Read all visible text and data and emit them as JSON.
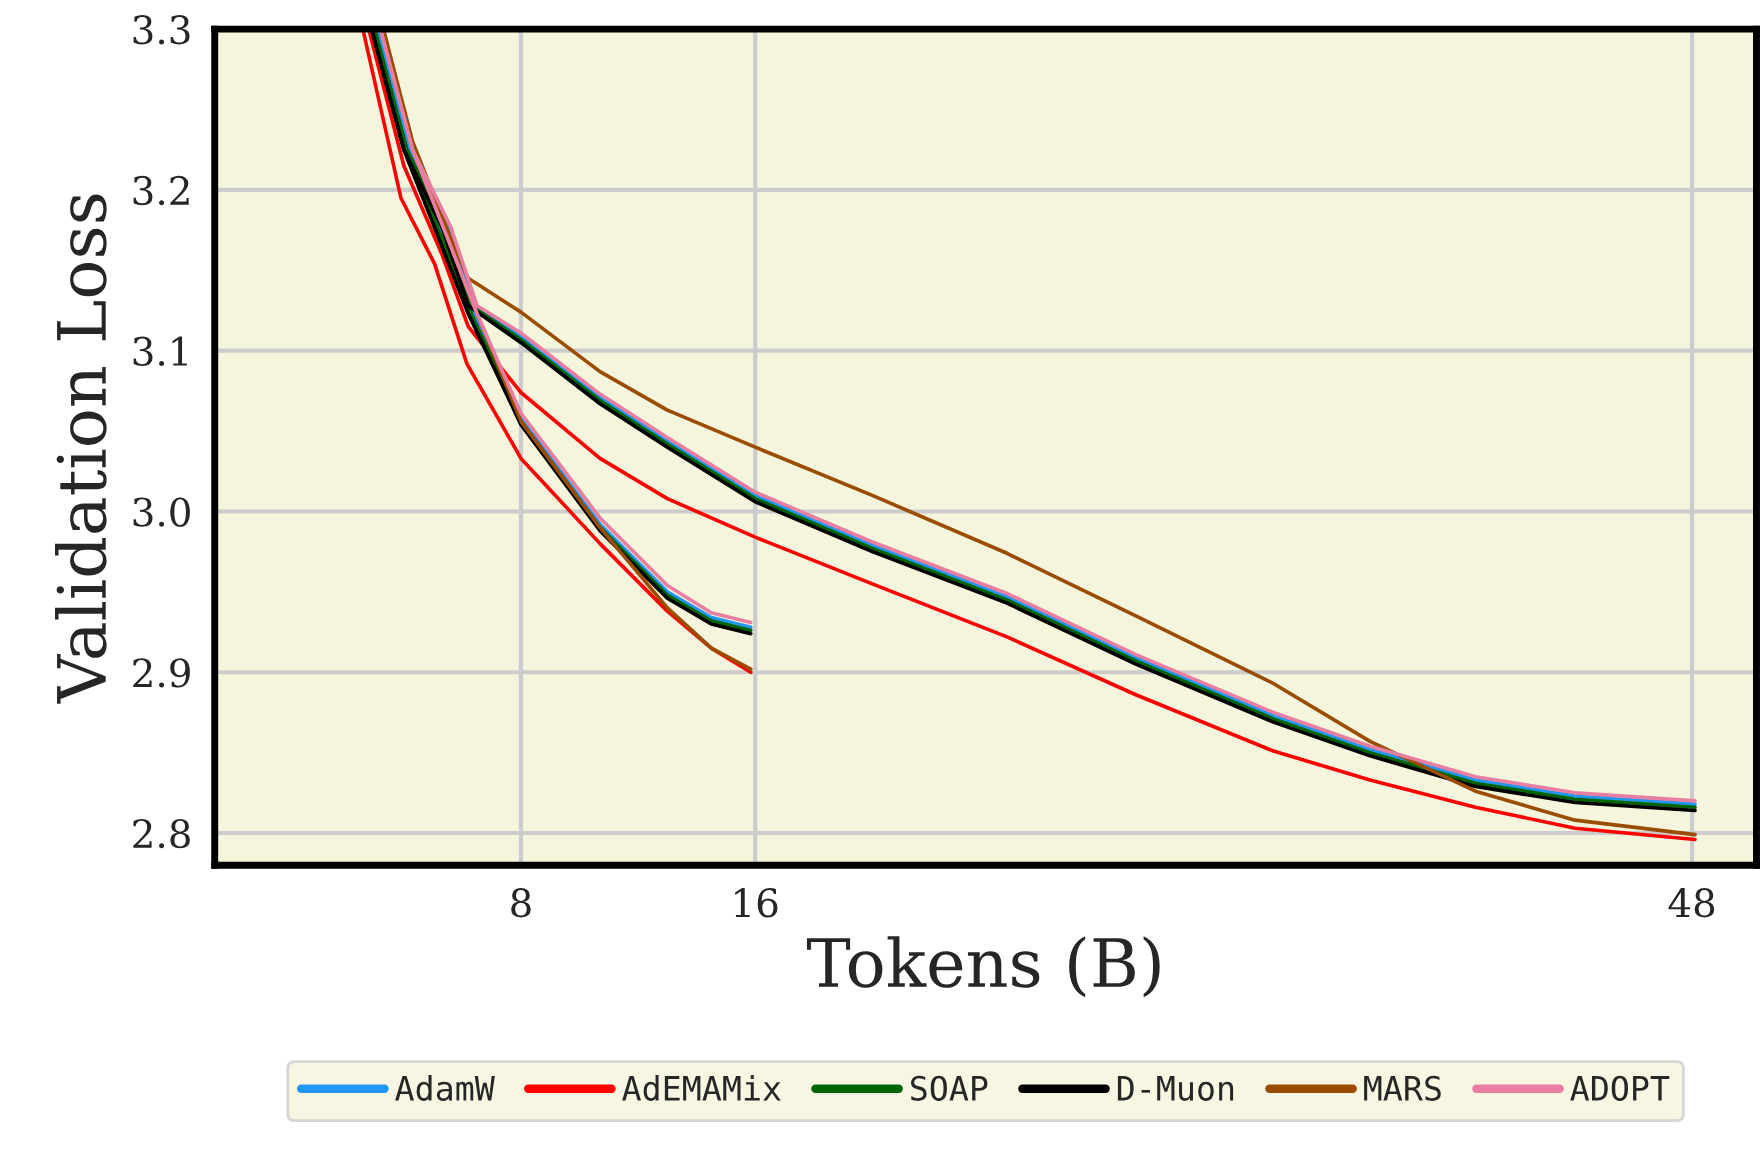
{
  "chart_data": {
    "type": "line",
    "xlabel": "Tokens (B)",
    "ylabel": "Validation Loss",
    "xlim": [
      -2.46,
      50.2
    ],
    "ylim": [
      2.78,
      3.3
    ],
    "xticks": [
      8,
      16,
      48
    ],
    "yticks": [
      {
        "value": 2.8,
        "label": "2.8"
      },
      {
        "value": 2.9,
        "label": "2.9"
      },
      {
        "value": 3,
        "label": "3.0"
      },
      {
        "value": 3.1,
        "label": "3.1"
      },
      {
        "value": 3.2,
        "label": "3.2"
      },
      {
        "value": 3.3,
        "label": "3.3"
      }
    ],
    "grid": true,
    "legend": "bottom",
    "marker": "none",
    "line_style": "solid",
    "series": [
      {
        "name": "AdamW",
        "color": "#2196f3",
        "x": [
          3.1,
          4.2,
          5.5,
          6.4,
          8,
          10.7,
          13,
          16,
          20,
          24.6,
          29,
          33.7,
          37,
          40.6,
          44,
          48.1
        ],
        "values": [
          3.3,
          3.225,
          3.177,
          3.128,
          3.109,
          3.071,
          3.044,
          3.01,
          2.979,
          2.947,
          2.909,
          2.873,
          2.852,
          2.833,
          2.823,
          2.818
        ]
      },
      {
        "color": "#2196f3",
        "x": [
          3.1,
          4.2,
          5.5,
          6.4,
          8,
          10.7,
          13,
          14.5,
          15.85
        ],
        "values": [
          3.3,
          3.225,
          3.165,
          3.123,
          3.058,
          2.992,
          2.95,
          2.934,
          2.928
        ]
      },
      {
        "name": "AdEMAMix",
        "color": "#ff0000",
        "x": [
          2.8,
          4,
          5.3,
          6.2,
          8,
          10.7,
          13,
          16,
          20,
          24.6,
          29,
          33.7,
          37,
          40.6,
          44,
          48.1
        ],
        "values": [
          3.3,
          3.215,
          3.16,
          3.115,
          3.074,
          3.033,
          3.008,
          2.984,
          2.955,
          2.922,
          2.886,
          2.851,
          2.833,
          2.816,
          2.803,
          2.796
        ]
      },
      {
        "color": "#ff0000",
        "x": [
          2.6,
          3.9,
          5.05,
          6.15,
          8,
          10.7,
          13,
          14.5,
          15.85
        ],
        "values": [
          3.3,
          3.195,
          3.154,
          3.092,
          3.033,
          2.98,
          2.938,
          2.915,
          2.9
        ]
      },
      {
        "name": "SOAP",
        "color": "#006400",
        "x": [
          3.0,
          4.1,
          5.4,
          6.3,
          8,
          10.7,
          13,
          16,
          20,
          24.6,
          29,
          33.7,
          37,
          40.6,
          44,
          48.1
        ],
        "values": [
          3.3,
          3.225,
          3.177,
          3.128,
          3.107,
          3.069,
          3.042,
          3.008,
          2.977,
          2.945,
          2.907,
          2.871,
          2.85,
          2.831,
          2.821,
          2.816
        ]
      },
      {
        "color": "#006400",
        "x": [
          3.0,
          4.1,
          5.4,
          6.3,
          8,
          10.7,
          13,
          14.5,
          15.85
        ],
        "values": [
          3.3,
          3.225,
          3.165,
          3.123,
          3.056,
          2.99,
          2.948,
          2.932,
          2.926
        ]
      },
      {
        "name": "D-Muon",
        "color": "#000000",
        "x": [
          2.9,
          4,
          5.3,
          6.2,
          8,
          10.7,
          13,
          16,
          20,
          24.6,
          29,
          33.7,
          37,
          40.6,
          44,
          48.1
        ],
        "values": [
          3.3,
          3.225,
          3.177,
          3.128,
          3.105,
          3.067,
          3.04,
          3.006,
          2.975,
          2.943,
          2.905,
          2.869,
          2.848,
          2.829,
          2.819,
          2.814
        ]
      },
      {
        "color": "#000000",
        "x": [
          2.9,
          4,
          5.3,
          6.2,
          8,
          10.7,
          13,
          14.5,
          15.85
        ],
        "values": [
          3.3,
          3.225,
          3.165,
          3.123,
          3.054,
          2.988,
          2.946,
          2.93,
          2.924
        ]
      },
      {
        "name": "MARS",
        "color": "#9a4d00",
        "x": [
          3.3,
          4.3,
          5.6,
          6.2,
          8,
          10.7,
          13,
          16,
          20,
          24.6,
          29,
          33.7,
          37,
          40.6,
          44,
          48.1
        ],
        "values": [
          3.3,
          3.23,
          3.17,
          3.145,
          3.124,
          3.087,
          3.063,
          3.04,
          3.01,
          2.974,
          2.935,
          2.893,
          2.857,
          2.826,
          2.808,
          2.799
        ]
      },
      {
        "color": "#9a4d00",
        "x": [
          3.3,
          4.3,
          5.6,
          6.5,
          8,
          10.7,
          13,
          14.5,
          15.85
        ],
        "values": [
          3.3,
          3.225,
          3.165,
          3.123,
          3.056,
          2.99,
          2.94,
          2.915,
          2.902
        ]
      },
      {
        "name": "ADOPT",
        "color": "#e87ea1",
        "x": [
          3.2,
          4.3,
          5.6,
          6.5,
          8,
          10.7,
          13,
          16,
          20,
          24.6,
          29,
          33.7,
          37,
          40.6,
          44,
          48.1
        ],
        "values": [
          3.3,
          3.225,
          3.177,
          3.128,
          3.111,
          3.073,
          3.046,
          3.012,
          2.981,
          2.949,
          2.911,
          2.875,
          2.854,
          2.835,
          2.825,
          2.82
        ]
      },
      {
        "color": "#e87ea1",
        "x": [
          3.2,
          4.3,
          5.6,
          6.5,
          8,
          10.7,
          13,
          14.5,
          15.85
        ],
        "values": [
          3.3,
          3.225,
          3.165,
          3.123,
          3.061,
          2.996,
          2.954,
          2.937,
          2.931
        ]
      }
    ]
  }
}
